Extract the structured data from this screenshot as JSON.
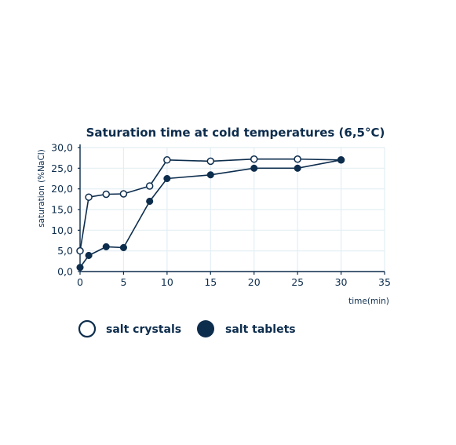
{
  "chart_data": {
    "type": "line",
    "title": "Saturation time at cold temperatures (6,5°C)",
    "xlabel": "time(min)",
    "ylabel": "saturation (%NaCl)",
    "xlim": [
      0,
      35
    ],
    "ylim": [
      0,
      30
    ],
    "xticks": [
      0,
      5,
      10,
      15,
      20,
      25,
      30,
      35
    ],
    "xtick_labels": [
      "0",
      "5",
      "10",
      "15",
      "20",
      "25",
      "30",
      "35"
    ],
    "yticks": [
      0,
      5,
      10,
      15,
      20,
      25,
      30
    ],
    "ytick_labels": [
      "0,0",
      "5,0",
      "10,0",
      "15,0",
      "20,0",
      "25,0",
      "30,0"
    ],
    "grid": true,
    "legend_position": "bottom-left",
    "series": [
      {
        "name": "salt crystals",
        "marker": "open-circle",
        "color": "#0d2d4d",
        "points": [
          [
            0,
            5.0
          ],
          [
            1,
            18.0
          ],
          [
            3,
            18.7
          ],
          [
            5,
            18.8
          ],
          [
            8,
            20.7
          ],
          [
            10,
            27.0
          ],
          [
            15,
            26.7
          ],
          [
            20,
            27.2
          ],
          [
            25,
            27.2
          ],
          [
            30,
            27.0
          ]
        ]
      },
      {
        "name": "salt tablets",
        "marker": "filled-circle",
        "color": "#0d2d4d",
        "points": [
          [
            0,
            1.0
          ],
          [
            1,
            3.9
          ],
          [
            3,
            6.0
          ],
          [
            5,
            5.8
          ],
          [
            8,
            17.0
          ],
          [
            10,
            22.5
          ],
          [
            15,
            23.4
          ],
          [
            20,
            25.0
          ],
          [
            25,
            25.0
          ],
          [
            30,
            27.0
          ]
        ]
      }
    ]
  },
  "colors": {
    "ink": "#0d2d4d",
    "grid": "#e3eef2",
    "background": "#ffffff"
  }
}
